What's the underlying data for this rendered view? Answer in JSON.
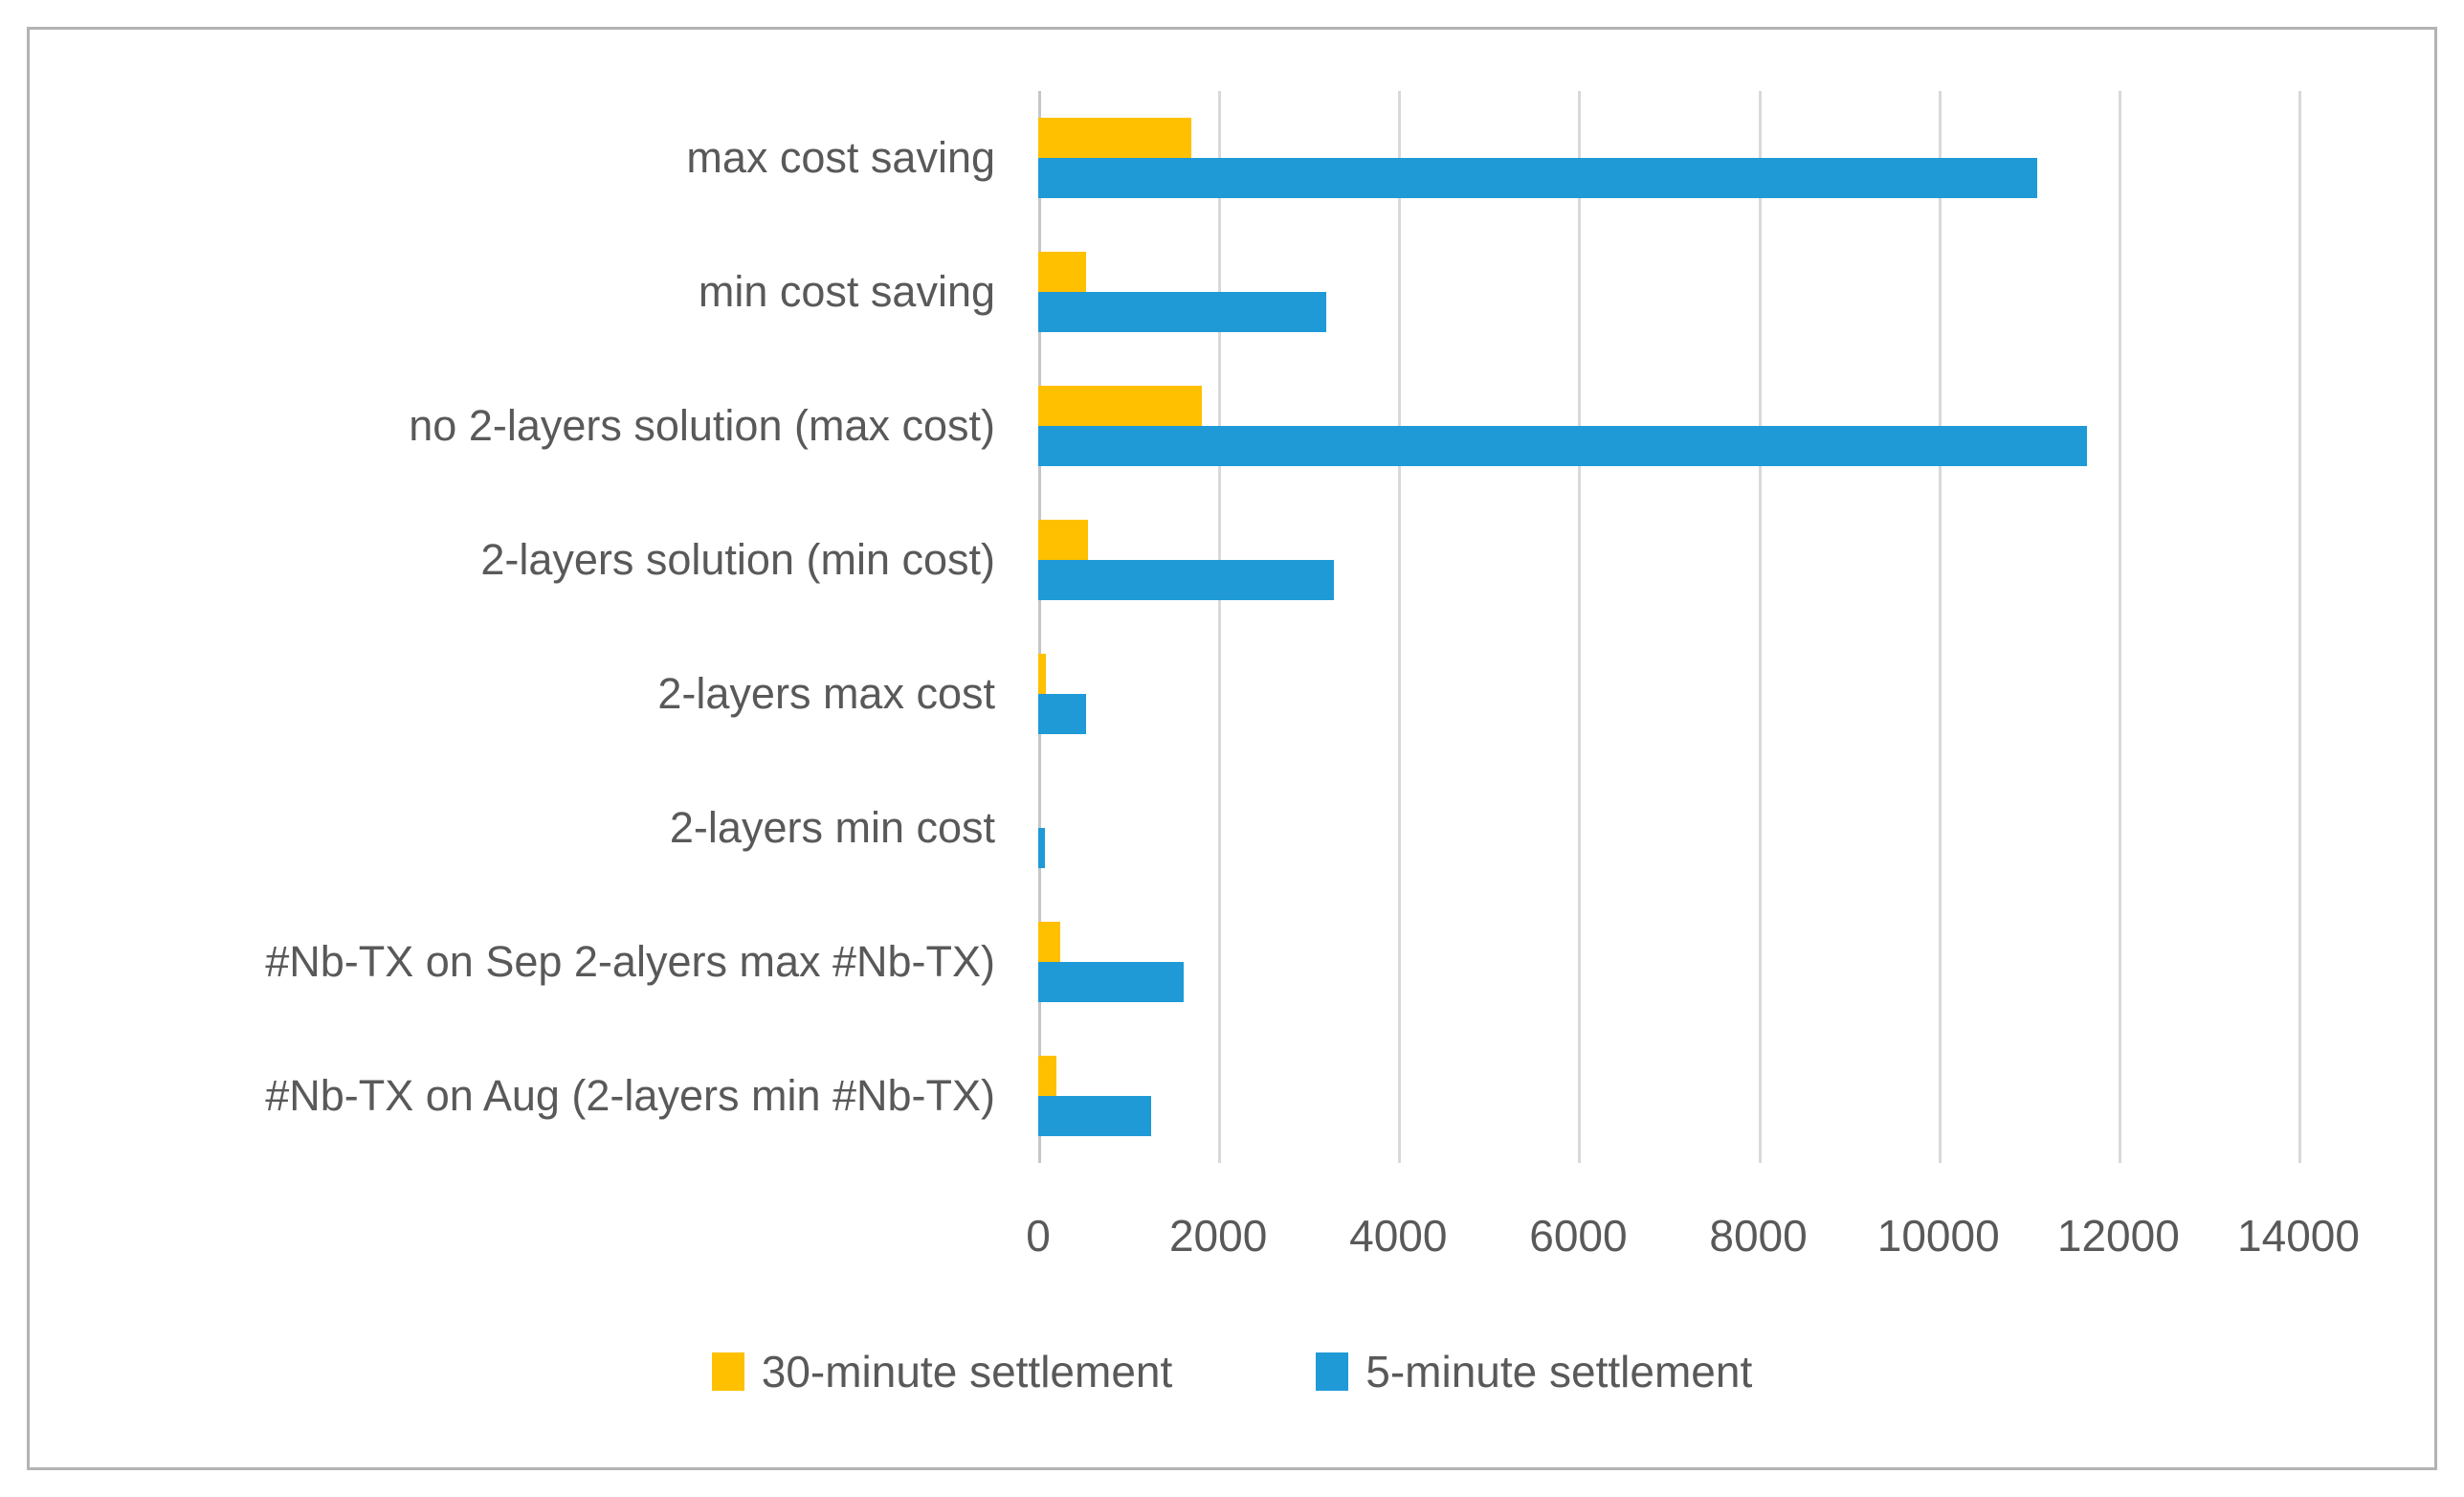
{
  "chart_data": {
    "type": "bar",
    "orientation": "horizontal",
    "title": "",
    "xlabel": "",
    "ylabel": "",
    "categories": [
      "max cost saving",
      "min cost saving",
      "no 2-layers solution (max cost)",
      "2-layers solution (min cost)",
      "2-layers max cost",
      "2-layers min cost",
      "#Nb-TX on Sep 2-alyers max #Nb-TX)",
      "#Nb-TX on Aug (2-layers min #Nb-TX)"
    ],
    "series": [
      {
        "name": "30-minute settlement",
        "color": "#FFC000",
        "values": [
          1700,
          530,
          1820,
          550,
          80,
          0,
          240,
          200
        ]
      },
      {
        "name": "5-minute settlement",
        "color": "#1F9AD7",
        "values": [
          11100,
          3200,
          11650,
          3280,
          530,
          70,
          1620,
          1250
        ]
      }
    ],
    "xlim": [
      0,
      14000
    ],
    "x_ticks": [
      0,
      2000,
      4000,
      6000,
      8000,
      10000,
      12000,
      14000
    ],
    "x_tick_labels": [
      "0",
      "2000",
      "4000",
      "6000",
      "8000",
      "10000",
      "12000",
      "14000"
    ],
    "grid": "vertical-gridlines-on",
    "legend_position": "bottom-center"
  },
  "colors": {
    "series_30min": "#FFC000",
    "series_5min": "#1F9AD7",
    "text": "#595959",
    "gridline": "#d9d9d9",
    "axis_line": "#c6c6c6",
    "frame_border": "#b3b3b3",
    "background": "#ffffff"
  }
}
